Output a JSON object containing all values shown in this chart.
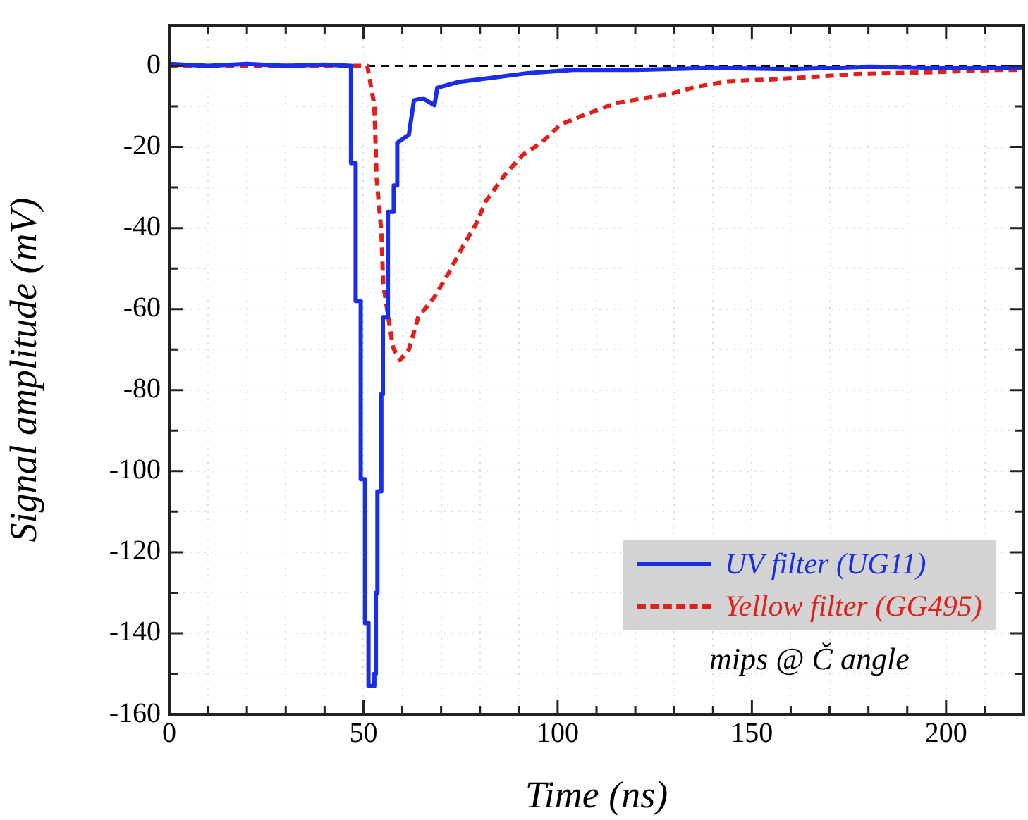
{
  "chart_data": {
    "type": "line",
    "xlabel": "Time (ns)",
    "ylabel": "Signal amplitude (mV)",
    "xlim": [
      0,
      220
    ],
    "ylim": [
      -160,
      10
    ],
    "xticks": [
      0,
      {
        "value": 10,
        "label": null
      },
      {
        "value": 20,
        "label": null
      },
      {
        "value": 30,
        "label": null
      },
      {
        "value": 40,
        "label": null
      },
      50,
      {
        "value": 60,
        "label": null
      },
      {
        "value": 70,
        "label": null
      },
      {
        "value": 80,
        "label": null
      },
      {
        "value": 90,
        "label": null
      },
      100,
      {
        "value": 110,
        "label": null
      },
      {
        "value": 120,
        "label": null
      },
      {
        "value": 130,
        "label": null
      },
      {
        "value": 140,
        "label": null
      },
      150,
      {
        "value": 160,
        "label": null
      },
      {
        "value": 170,
        "label": null
      },
      {
        "value": 180,
        "label": null
      },
      {
        "value": 190,
        "label": null
      },
      200,
      {
        "value": 210,
        "label": null
      }
    ],
    "yticks": [
      -160,
      {
        "value": -150,
        "label": null
      },
      -140,
      {
        "value": -130,
        "label": null
      },
      -120,
      {
        "value": -110,
        "label": null
      },
      -100,
      {
        "value": -90,
        "label": null
      },
      -80,
      {
        "value": -70,
        "label": null
      },
      -60,
      {
        "value": -50,
        "label": null
      },
      -40,
      {
        "value": -30,
        "label": null
      },
      -20,
      {
        "value": -10,
        "label": null
      },
      0
    ],
    "grid": true,
    "legend": "bottom right",
    "marker": "none",
    "ref_lines": [
      {
        "axis": "y",
        "value": 0,
        "label": null,
        "color": "#000000",
        "line_style": "dashed"
      }
    ],
    "annotations": [
      "mips @ Č angle"
    ],
    "series": [
      {
        "name": "UV filter (UG11)",
        "color": "#1a2ee8",
        "line_style": "solid",
        "x": [
          0,
          10,
          20,
          30,
          40,
          46.8,
          46.8,
          48,
          48,
          49.3,
          49.3,
          50.4,
          50.4,
          51.3,
          51.3,
          52.8,
          52.8,
          53.2,
          53.2,
          53.6,
          53.6,
          54.6,
          54.6,
          55,
          55,
          56.3,
          56.3,
          57.8,
          57.8,
          58.7,
          58.7,
          61.7,
          62.3,
          63,
          65.3,
          68.3,
          69,
          74.3,
          82.7,
          92.3,
          104,
          120,
          140,
          160,
          180,
          200,
          220
        ],
        "values": [
          0.5,
          0,
          0.5,
          0,
          0.3,
          0,
          -24,
          -24,
          -58,
          -58,
          -102,
          -102,
          -137.5,
          -137.5,
          -153,
          -153,
          -150,
          -150,
          -130,
          -130,
          -105,
          -105,
          -81,
          -81,
          -62,
          -62,
          -36,
          -36,
          -29.5,
          -29.5,
          -19,
          -17,
          -13,
          -8.5,
          -8,
          -9.7,
          -5.4,
          -4,
          -3,
          -1.8,
          -1,
          -1,
          -0.5,
          -0.8,
          -0.2,
          -0.5,
          -0.5
        ]
      },
      {
        "name": "Yellow filter (GG495)",
        "color": "#e0201a",
        "line_style": "dashed",
        "x": [
          0,
          20,
          40,
          51,
          52.8,
          53.4,
          54.6,
          55.1,
          56.4,
          57.6,
          59.4,
          61.7,
          64.1,
          68.3,
          72,
          75.5,
          79,
          81.5,
          86.3,
          91,
          96,
          100.7,
          105.5,
          115,
          129.5,
          135.5,
          144,
          156,
          177,
          195,
          213,
          220
        ],
        "values": [
          0,
          0,
          0,
          0,
          -9.7,
          -27.8,
          -41,
          -53.8,
          -62,
          -69.5,
          -72.6,
          -70,
          -62,
          -57,
          -51,
          -44.7,
          -39,
          -33.4,
          -27,
          -22,
          -18.8,
          -14.5,
          -12.6,
          -9.2,
          -6.8,
          -5.2,
          -3.8,
          -3.3,
          -2,
          -1.6,
          -1,
          -1
        ]
      }
    ]
  }
}
